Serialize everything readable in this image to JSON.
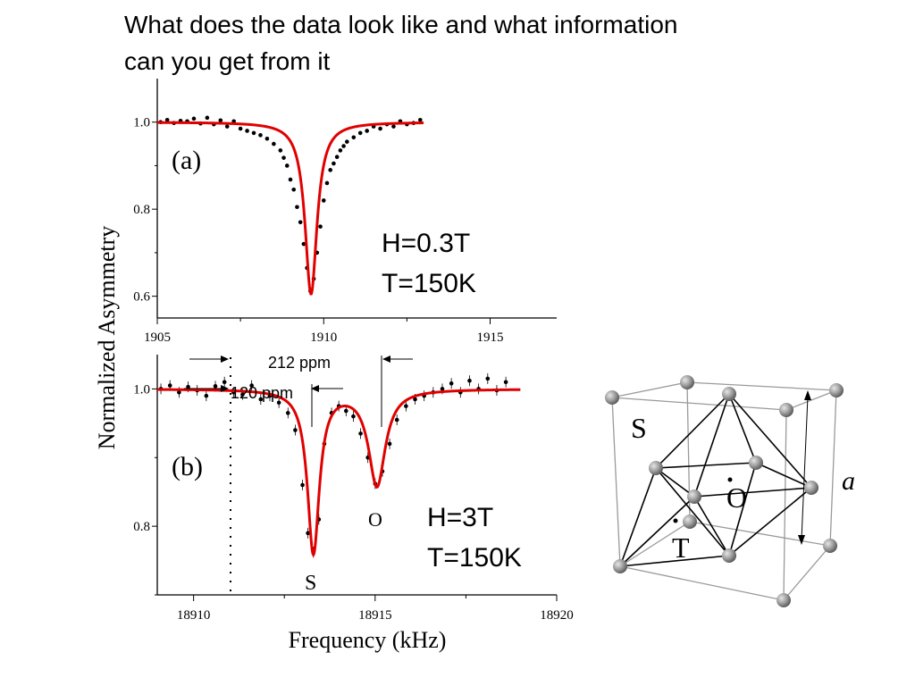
{
  "title_lines": [
    "What does the data look like and what information",
    "can you get from it"
  ],
  "ylabel": "Normalized Asymmetry",
  "xlabel": "Frequency (kHz)",
  "annotations": {
    "a_label": "(a)",
    "a_conditions": [
      "H=0.3T",
      "T=150K"
    ],
    "b_label": "(b)",
    "b_conditions": [
      "H=3T",
      "T=150K"
    ],
    "ppm_212": "212 ppm",
    "ppm_120": "120 ppm",
    "peak_s": "S",
    "peak_o": "O"
  },
  "lattice_labels": {
    "S": "S",
    "O": "O",
    "T": "T",
    "a": "a"
  },
  "colors": {
    "fit": "#e00000",
    "data": "#000000",
    "sphere": "#8a8a8a",
    "cube_edge": "#9a9a9a"
  },
  "chart_data": [
    {
      "type": "scatter",
      "panel": "(a)",
      "xlim": [
        1905,
        1917
      ],
      "ylim": [
        0.55,
        1.1
      ],
      "xticks": [
        1905,
        1910,
        1915
      ],
      "yticks": [
        0.6,
        0.8,
        1.0
      ],
      "xtick_labels": [
        "1905",
        "1910",
        "1915"
      ],
      "ytick_labels": [
        "0.6",
        "0.8",
        "1.0"
      ],
      "series": [
        {
          "kind": "fit",
          "model": "lorentzian",
          "baseline": 1.0,
          "peaks": [
            {
              "center": 1909.62,
              "depth": 0.395,
              "hwhm": 0.22
            }
          ],
          "x_range": [
            1905,
            1913
          ]
        },
        {
          "kind": "data",
          "x": [
            1905.1,
            1905.3,
            1905.5,
            1905.7,
            1905.9,
            1906.1,
            1906.3,
            1906.5,
            1906.7,
            1906.9,
            1907.1,
            1907.3,
            1907.5,
            1907.7,
            1907.9,
            1908.1,
            1908.3,
            1908.5,
            1908.7,
            1908.8,
            1908.9,
            1909.0,
            1909.1,
            1909.2,
            1909.3,
            1909.4,
            1909.5,
            1909.6,
            1909.7,
            1909.8,
            1909.9,
            1910.0,
            1910.1,
            1910.2,
            1910.3,
            1910.4,
            1910.5,
            1910.6,
            1910.7,
            1910.9,
            1911.1,
            1911.3,
            1911.5,
            1911.7,
            1911.9,
            1912.1,
            1912.3,
            1912.5,
            1912.7,
            1912.9
          ],
          "y": [
            1.0,
            1.005,
            0.998,
            1.003,
            1.002,
            1.008,
            0.997,
            1.01,
            0.995,
            1.004,
            0.99,
            1.002,
            0.985,
            0.98,
            0.975,
            0.97,
            0.962,
            0.95,
            0.935,
            0.918,
            0.9,
            0.868,
            0.845,
            0.805,
            0.77,
            0.72,
            0.665,
            0.612,
            0.64,
            0.7,
            0.76,
            0.82,
            0.86,
            0.89,
            0.905,
            0.92,
            0.935,
            0.945,
            0.955,
            0.965,
            0.975,
            0.98,
            0.99,
            0.985,
            0.995,
            0.99,
            1.002,
            0.995,
            0.998,
            1.005
          ]
        }
      ]
    },
    {
      "type": "scatter",
      "panel": "(b)",
      "xlim": [
        18909,
        18920
      ],
      "ylim": [
        0.7,
        1.05
      ],
      "xticks": [
        18910,
        18915,
        18920
      ],
      "yticks": [
        0.8,
        1.0
      ],
      "xtick_labels": [
        "18910",
        "18915",
        "18920"
      ],
      "ytick_labels": [
        "0.8",
        "1.0"
      ],
      "dotted_line_x": 18911.4,
      "series": [
        {
          "kind": "fit",
          "model": "lorentzian",
          "baseline": 1.0,
          "peaks": [
            {
              "center": 18913.3,
              "depth": 0.238,
              "hwhm": 0.2
            },
            {
              "center": 18915.05,
              "depth": 0.14,
              "hwhm": 0.28
            }
          ],
          "x_range": [
            18909,
            18919
          ]
        },
        {
          "kind": "data",
          "x": [
            18909.1,
            18909.35,
            18909.6,
            18909.85,
            18910.1,
            18910.35,
            18910.6,
            18910.85,
            18911.1,
            18911.35,
            18911.6,
            18911.85,
            18912.1,
            18912.35,
            18912.6,
            18912.8,
            18913.0,
            18913.15,
            18913.3,
            18913.45,
            18913.6,
            18913.8,
            18914.0,
            18914.2,
            18914.4,
            18914.6,
            18914.8,
            18915.0,
            18915.2,
            18915.4,
            18915.6,
            18915.85,
            18916.1,
            18916.35,
            18916.6,
            18916.85,
            18917.1,
            18917.35,
            18917.6,
            18917.85,
            18918.1,
            18918.35,
            18918.6
          ],
          "y": [
            1.0,
            1.005,
            0.995,
            1.003,
            0.998,
            0.99,
            1.004,
            1.01,
            0.995,
            0.992,
            1.005,
            0.985,
            0.99,
            0.98,
            0.965,
            0.94,
            0.86,
            0.79,
            0.762,
            0.81,
            0.92,
            0.965,
            0.975,
            0.968,
            0.96,
            0.935,
            0.9,
            0.862,
            0.88,
            0.92,
            0.955,
            0.975,
            0.985,
            0.99,
            0.995,
            1.0,
            1.008,
            0.995,
            1.012,
            1.0,
            1.015,
            0.998,
            1.01
          ]
        }
      ]
    }
  ]
}
